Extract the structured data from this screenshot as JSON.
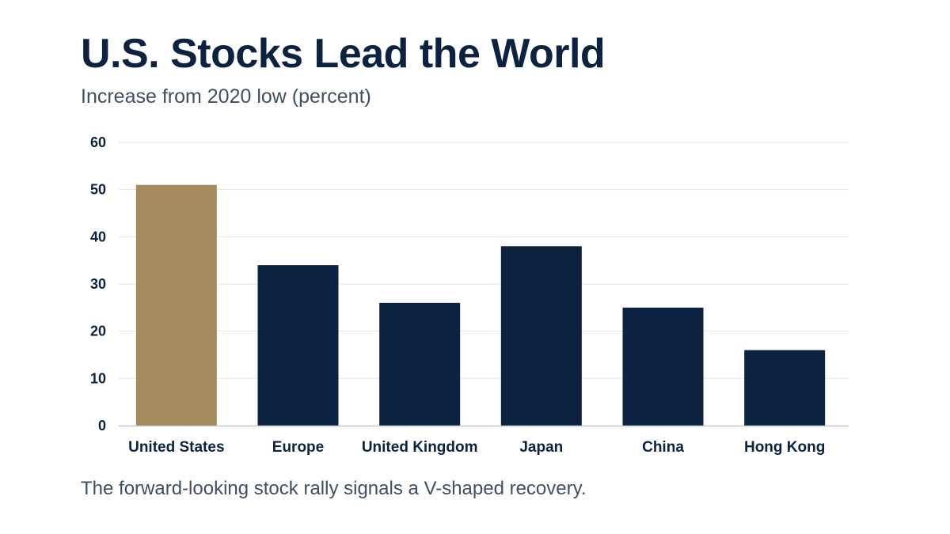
{
  "header": {
    "title": "U.S. Stocks Lead the World",
    "subtitle": "Increase from 2020 low (percent)"
  },
  "footer": {
    "note": "The forward-looking stock rally signals a V-shaped recovery."
  },
  "colors": {
    "highlight": "#a68b5e",
    "bar": "#0b2340",
    "grid": "#e6e6e6",
    "axis": "#c8c8c8"
  },
  "chart_data": {
    "type": "bar",
    "title": "U.S. Stocks Lead the World",
    "subtitle": "Increase from 2020 low (percent)",
    "xlabel": "",
    "ylabel": "",
    "categories": [
      "United States",
      "Europe",
      "United Kingdom",
      "Japan",
      "China",
      "Hong Kong"
    ],
    "values": [
      51,
      34,
      26,
      38,
      25,
      16
    ],
    "highlight_index": 0,
    "ylim": [
      0,
      60
    ],
    "yticks": [
      0,
      10,
      20,
      30,
      40,
      50,
      60
    ],
    "grid": true,
    "legend": "none"
  }
}
